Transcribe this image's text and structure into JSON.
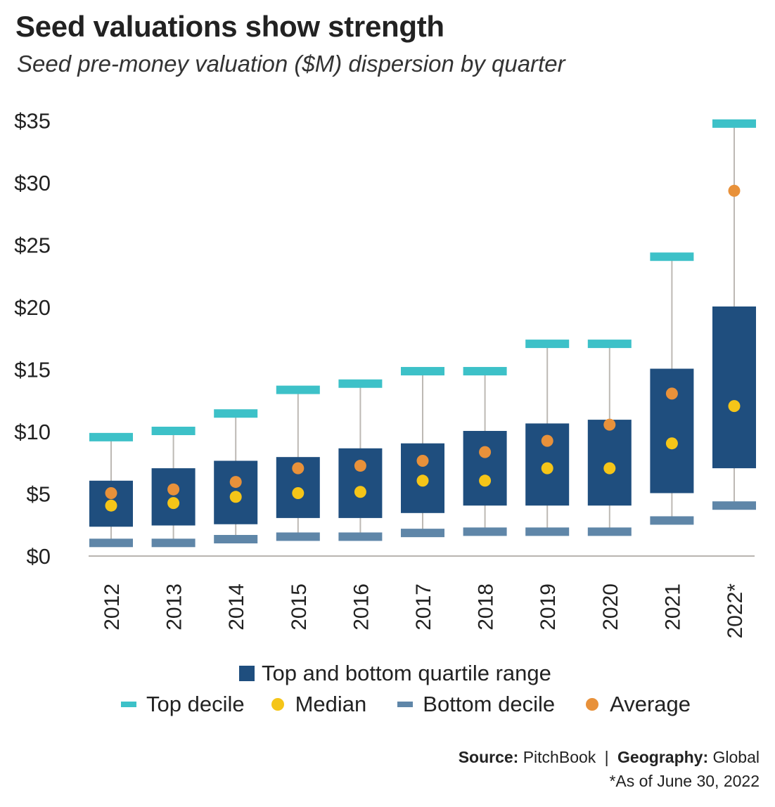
{
  "title": "Seed valuations show strength",
  "subtitle": "Seed pre-money valuation ($M) dispersion by quarter",
  "colors": {
    "quartile_box": "#1f4e7e",
    "top_decile": "#3dc1c8",
    "bottom_decile": "#5f86a8",
    "median": "#f5c518",
    "average": "#e8913a",
    "whisker": "#bdb9b4",
    "axis": "#b9b5b0"
  },
  "legend": {
    "quartile": "Top and bottom quartile range",
    "top_decile": "Top decile",
    "median": "Median",
    "bottom_decile": "Bottom decile",
    "average": "Average"
  },
  "footer": {
    "source_label": "Source:",
    "source_value": "PitchBook",
    "separator": "|",
    "geography_label": "Geography:",
    "geography_value": "Global",
    "note": "*As of June 30, 2022"
  },
  "chart_data": {
    "type": "box",
    "categories": [
      "2012",
      "2013",
      "2014",
      "2015",
      "2016",
      "2017",
      "2018",
      "2019",
      "2020",
      "2021",
      "2022*"
    ],
    "series": [
      {
        "name": "Top decile",
        "values": [
          9.5,
          10.0,
          11.4,
          13.3,
          13.8,
          14.8,
          14.8,
          17.0,
          17.0,
          24.0,
          34.7
        ]
      },
      {
        "name": "Top and bottom quartile range",
        "values": [
          [
            2.3,
            6.0
          ],
          [
            2.4,
            7.0
          ],
          [
            2.5,
            7.6
          ],
          [
            3.0,
            7.9
          ],
          [
            3.0,
            8.6
          ],
          [
            3.4,
            9.0
          ],
          [
            4.0,
            10.0
          ],
          [
            4.0,
            10.6
          ],
          [
            4.0,
            10.9
          ],
          [
            5.0,
            15.0
          ],
          [
            7.0,
            20.0
          ]
        ]
      },
      {
        "name": "Median",
        "values": [
          4.0,
          4.2,
          4.7,
          5.0,
          5.1,
          6.0,
          6.0,
          7.0,
          7.0,
          9.0,
          12.0
        ]
      },
      {
        "name": "Average",
        "values": [
          5.0,
          5.3,
          5.9,
          7.0,
          7.2,
          7.6,
          8.3,
          9.2,
          10.5,
          13.0,
          29.3
        ]
      },
      {
        "name": "Bottom decile",
        "values": [
          1.0,
          1.0,
          1.3,
          1.5,
          1.5,
          1.8,
          1.9,
          1.9,
          1.9,
          2.8,
          4.0
        ]
      }
    ],
    "y_ticks": [
      "$0",
      "$5",
      "$10",
      "$15",
      "$20",
      "$25",
      "$30",
      "$35"
    ],
    "ylim": [
      0,
      35
    ],
    "grid": false,
    "legend_position": "bottom"
  }
}
